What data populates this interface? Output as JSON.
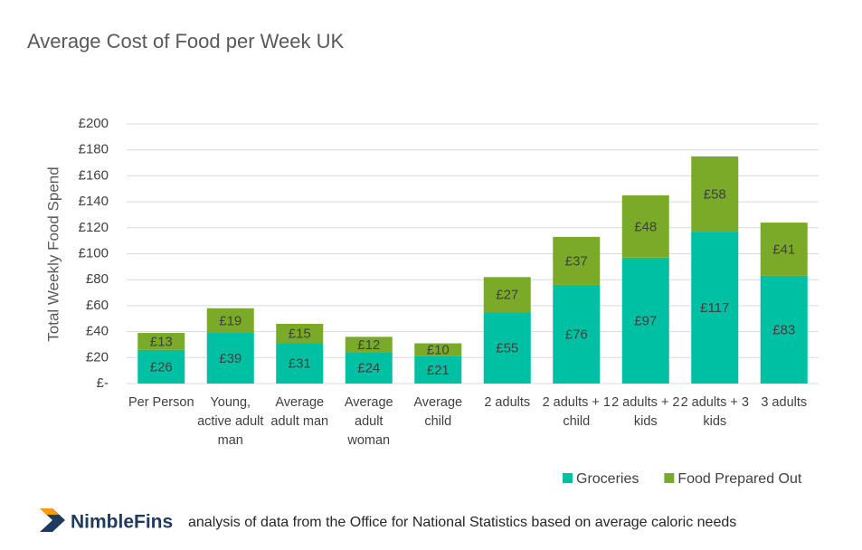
{
  "chart_data": {
    "type": "stacked-bar",
    "title": "Average Cost of Food per Week UK",
    "y_label": "Total Weekly Food Spend",
    "categories": [
      "Per Person",
      "Young, active adult man",
      "Average adult man",
      "Average adult woman",
      "Average child",
      "2 adults",
      "2 adults + 1 child",
      "2 adults + 2 kids",
      "2 adults + 3 kids",
      "3 adults"
    ],
    "series": [
      {
        "name": "Groceries",
        "color": "#00c0a3",
        "values": [
          26,
          39,
          31,
          24,
          21,
          55,
          76,
          97,
          117,
          83
        ],
        "value_labels": [
          "£26",
          "£39",
          "£31",
          "£24",
          "£21",
          "£55",
          "£76",
          "£97",
          "£117",
          "£83"
        ]
      },
      {
        "name": "Food Prepared Out",
        "color": "#7aab28",
        "values": [
          13,
          19,
          15,
          12,
          10,
          27,
          37,
          48,
          58,
          41
        ],
        "value_labels": [
          "£13",
          "£19",
          "£15",
          "£12",
          "£10",
          "£27",
          "£37",
          "£48",
          "£58",
          "£41"
        ]
      }
    ],
    "ylim": [
      0,
      200
    ],
    "yticks": [
      {
        "value": 0,
        "label": "£-"
      },
      {
        "value": 20,
        "label": "£20"
      },
      {
        "value": 40,
        "label": "£40"
      },
      {
        "value": 60,
        "label": "£60"
      },
      {
        "value": 80,
        "label": "£80"
      },
      {
        "value": 100,
        "label": "£100"
      },
      {
        "value": 120,
        "label": "£120"
      },
      {
        "value": 140,
        "label": "£140"
      },
      {
        "value": 160,
        "label": "£160"
      },
      {
        "value": 180,
        "label": "£180"
      },
      {
        "value": 200,
        "label": "£200"
      }
    ],
    "grid": true,
    "legend": "bottom-right"
  },
  "footer": {
    "brand": "NimbleFins",
    "note": "analysis of data from the Office for National Statistics based on average caloric needs"
  }
}
